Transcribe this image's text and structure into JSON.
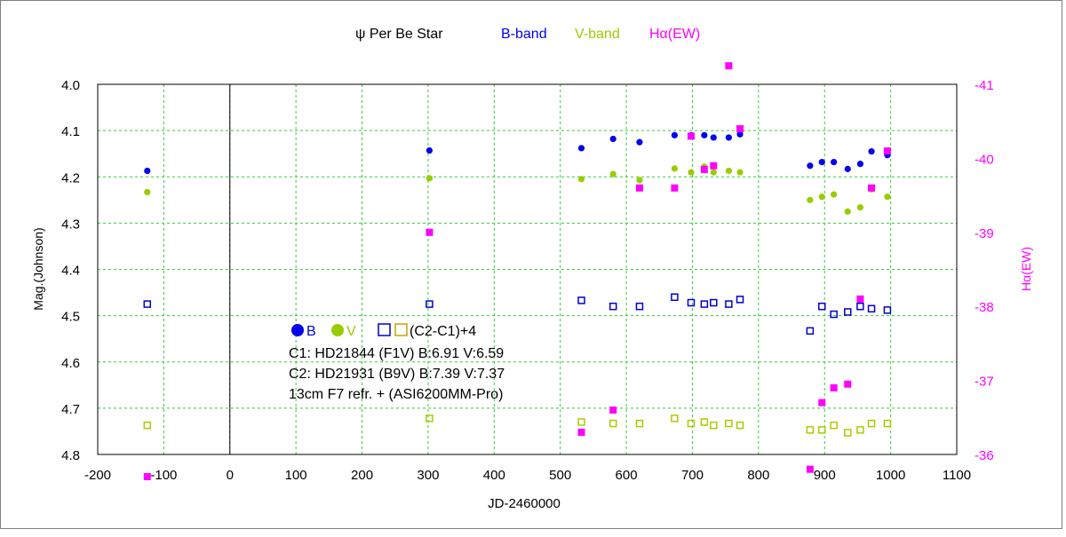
{
  "chart_data": {
    "type": "scatter",
    "title": "ψ Per   Be Star",
    "legend_b": "B-band",
    "legend_v": "V-band",
    "legend_ha": "Hα(EW)",
    "xlabel": "JD-2460000",
    "ylabel": "Mag.(Johnson)",
    "y2label": "Hα(EW)",
    "xlim": [
      -200,
      1100
    ],
    "ylim": [
      4.0,
      4.8
    ],
    "y2lim": [
      -41,
      -36
    ],
    "y_inverted": true,
    "grid": true,
    "x_ticks": [
      "-200",
      "-100",
      "0",
      "100",
      "200",
      "300",
      "400",
      "500",
      "600",
      "700",
      "800",
      "900",
      "1000",
      "1100"
    ],
    "y_ticks": [
      "4.0",
      "4.1",
      "4.2",
      "4.3",
      "4.4",
      "4.5",
      "4.6",
      "4.7",
      "4.8"
    ],
    "y2_ticks": [
      "-41",
      "-40",
      "-39",
      "-38",
      "-37",
      "-36"
    ],
    "colors": {
      "B": "#0000ee",
      "V": "#99cc00",
      "Ha": "#ff00ff",
      "C_blue": "#0000cc",
      "C_olive": "#aacc00",
      "grid": "#33cc33"
    },
    "annotation": {
      "key_b": "B",
      "key_v": "V",
      "key_c": "(C2-C1)+4",
      "c1": "C1: HD21844 (F1V)  B:6.91  V:6.59",
      "c2": "C2: HD21931 (B9V)  B:7.39  V:7.37",
      "instrument": "13cm  F7  refr.  + (ASI6200MM-Pro)"
    },
    "series": [
      {
        "name": "B-band",
        "axis": "left",
        "marker": "dot",
        "x": [
          -125,
          302,
          532,
          580,
          620,
          673,
          698,
          718,
          732,
          755,
          772,
          878,
          896,
          914,
          935,
          954,
          971,
          995
        ],
        "y": [
          4.187,
          4.143,
          4.138,
          4.118,
          4.125,
          4.11,
          4.11,
          4.11,
          4.115,
          4.115,
          4.108,
          4.176,
          4.168,
          4.168,
          4.183,
          4.172,
          4.145,
          4.153
        ]
      },
      {
        "name": "V-band",
        "axis": "left",
        "marker": "dot",
        "x": [
          -125,
          302,
          532,
          580,
          620,
          673,
          698,
          718,
          732,
          755,
          772,
          878,
          896,
          914,
          935,
          954,
          971,
          995
        ],
        "y": [
          4.233,
          4.203,
          4.205,
          4.194,
          4.207,
          4.182,
          4.19,
          4.178,
          4.19,
          4.187,
          4.19,
          4.25,
          4.243,
          4.238,
          4.275,
          4.266,
          4.227,
          4.243
        ]
      },
      {
        "name": "Hα(EW)",
        "axis": "right",
        "marker": "filled-square",
        "x": [
          -125,
          302,
          532,
          580,
          620,
          673,
          698,
          718,
          732,
          755,
          772,
          878,
          896,
          914,
          935,
          954,
          971,
          995
        ],
        "y": [
          -35.7,
          -39.0,
          -36.3,
          -36.6,
          -39.6,
          -39.6,
          -40.3,
          -39.85,
          -39.9,
          -41.25,
          -40.4,
          -35.8,
          -36.7,
          -36.9,
          -36.95,
          -38.1,
          -39.6,
          -40.1
        ]
      },
      {
        "name": "(C2-C1)+4 B",
        "axis": "left",
        "marker": "open-square",
        "x": [
          -125,
          302,
          532,
          580,
          620,
          673,
          698,
          718,
          732,
          755,
          772,
          878,
          896,
          914,
          935,
          954,
          971,
          995
        ],
        "y": [
          4.475,
          4.475,
          4.467,
          4.48,
          4.48,
          4.46,
          4.472,
          4.475,
          4.472,
          4.475,
          4.465,
          4.533,
          4.48,
          4.497,
          4.492,
          4.48,
          4.485,
          4.488
        ]
      },
      {
        "name": "(C2-C1)+4 V",
        "axis": "left",
        "marker": "open-square",
        "x": [
          -125,
          302,
          532,
          580,
          620,
          673,
          698,
          718,
          732,
          755,
          772,
          878,
          896,
          914,
          935,
          954,
          971,
          995
        ],
        "y": [
          4.737,
          4.722,
          4.73,
          4.733,
          4.733,
          4.722,
          4.733,
          4.73,
          4.737,
          4.733,
          4.737,
          4.747,
          4.747,
          4.737,
          4.753,
          4.747,
          4.733,
          4.733
        ]
      }
    ]
  }
}
